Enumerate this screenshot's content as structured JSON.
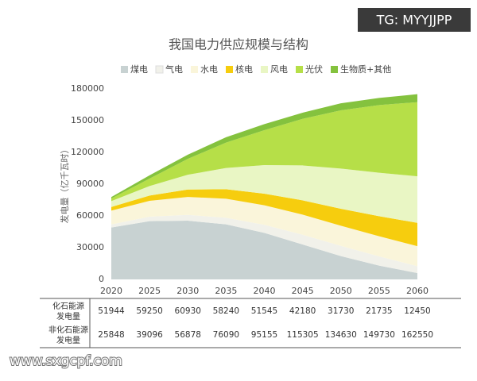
{
  "chart_data": {
    "type": "stacked_area",
    "title": "我国电力供应规模与结构",
    "y_label": "发电量（亿千瓦时）",
    "categories": [
      "2020",
      "2025",
      "2030",
      "2035",
      "2040",
      "2045",
      "2050",
      "2055",
      "2060"
    ],
    "ylim": [
      0,
      180000
    ],
    "yticks": [
      0,
      30000,
      60000,
      90000,
      120000,
      150000,
      180000
    ],
    "series": [
      {
        "name": "煤电",
        "color": "#c8d2d2",
        "values": [
          49000,
          55000,
          55500,
          52000,
          44000,
          33000,
          22000,
          13000,
          6000
        ]
      },
      {
        "name": "气电",
        "color": "#f1f1ea",
        "values": [
          2944,
          4250,
          5430,
          6240,
          7545,
          9180,
          9730,
          8735,
          6450
        ]
      },
      {
        "name": "水电",
        "color": "#faf5da",
        "values": [
          13000,
          15000,
          17000,
          18000,
          18500,
          19000,
          19000,
          19000,
          19000
        ]
      },
      {
        "name": "核电",
        "color": "#f6cd0e",
        "values": [
          3500,
          5000,
          7000,
          9000,
          11000,
          13500,
          16000,
          19000,
          22000
        ]
      },
      {
        "name": "风电",
        "color": "#e9f6c4",
        "values": [
          5500,
          9000,
          14000,
          20000,
          27000,
          33000,
          38000,
          41000,
          44000
        ]
      },
      {
        "name": "光伏",
        "color": "#b6df48",
        "values": [
          2500,
          7000,
          15000,
          24000,
          33000,
          44000,
          55000,
          64000,
          70000
        ]
      },
      {
        "name": "生物质+其他",
        "color": "#84c23e",
        "values": [
          1348,
          3096,
          3878,
          5090,
          5655,
          5805,
          6630,
          6730,
          7550
        ]
      }
    ]
  },
  "table": {
    "rows": [
      {
        "label": [
          "化石能源",
          "发电量"
        ],
        "values": [
          51944,
          59250,
          60930,
          58240,
          51545,
          42180,
          31730,
          21735,
          12450
        ]
      },
      {
        "label": [
          "非化石能源",
          "发电量"
        ],
        "values": [
          25848,
          39096,
          56878,
          76090,
          95155,
          115305,
          134630,
          149730,
          162550
        ]
      }
    ]
  },
  "watermarks": {
    "top": "TG: MYYJJPP",
    "bottom": "www.sxgcpf.com"
  }
}
